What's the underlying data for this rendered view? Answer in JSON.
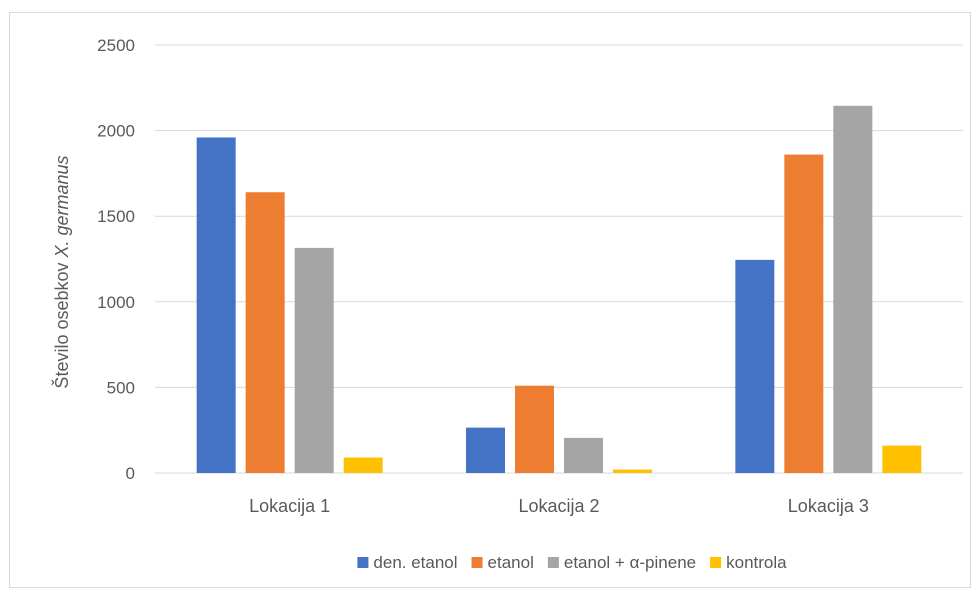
{
  "chart_data": {
    "type": "bar",
    "categories": [
      "Lokacija 1",
      "Lokacija 2",
      "Lokacija 3"
    ],
    "series": [
      {
        "name": "den. etanol",
        "values": [
          1960,
          265,
          1245
        ],
        "color": "#4472c4"
      },
      {
        "name": "etanol",
        "values": [
          1640,
          510,
          1860
        ],
        "color": "#ed7d31"
      },
      {
        "name": "etanol + α-pinene",
        "values": [
          1315,
          205,
          2145
        ],
        "color": "#a5a5a5"
      },
      {
        "name": "kontrola",
        "values": [
          90,
          20,
          160
        ],
        "color": "#ffc000"
      }
    ],
    "ylabel_main": "Število osebkov ",
    "ylabel_species": "X. germanus",
    "ylim": [
      0,
      2500
    ],
    "yticks": [
      "0",
      "500",
      "1000",
      "1500",
      "2000",
      "2500"
    ],
    "ytick_values": [
      0,
      500,
      1000,
      1500,
      2000,
      2500
    ],
    "grid": true,
    "legend_position": "bottom"
  }
}
